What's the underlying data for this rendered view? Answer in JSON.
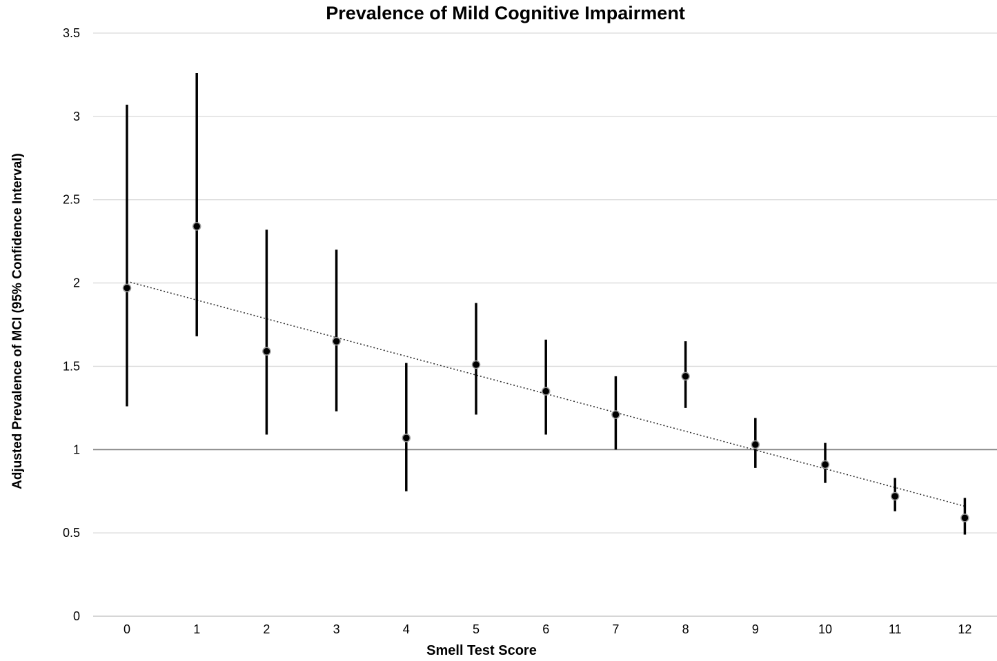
{
  "chart_data": {
    "type": "scatter",
    "title": "Prevalence of Mild Cognitive Impairment",
    "xlabel": "Smell Test Score",
    "ylabel": "Adjusted Prevalence of MCI (95% Confidence Interval)",
    "x_ticks": [
      "0",
      "1",
      "2",
      "3",
      "4",
      "5",
      "6",
      "7",
      "8",
      "9",
      "10",
      "11",
      "12"
    ],
    "y_ticks": [
      "0",
      "0.5",
      "1",
      "1.5",
      "2",
      "2.5",
      "3",
      "3.5"
    ],
    "ylim": [
      0,
      3.5
    ],
    "xlim": [
      0,
      12
    ],
    "grid": true,
    "reference_line_y": 1,
    "points": [
      {
        "x": 0,
        "y": 1.97,
        "lower": 1.26,
        "upper": 3.07
      },
      {
        "x": 1,
        "y": 2.34,
        "lower": 1.68,
        "upper": 3.26
      },
      {
        "x": 2,
        "y": 1.59,
        "lower": 1.09,
        "upper": 2.32
      },
      {
        "x": 3,
        "y": 1.65,
        "lower": 1.23,
        "upper": 2.2
      },
      {
        "x": 4,
        "y": 1.07,
        "lower": 0.75,
        "upper": 1.52
      },
      {
        "x": 5,
        "y": 1.51,
        "lower": 1.21,
        "upper": 1.88
      },
      {
        "x": 6,
        "y": 1.35,
        "lower": 1.09,
        "upper": 1.66
      },
      {
        "x": 7,
        "y": 1.21,
        "lower": 1.0,
        "upper": 1.44
      },
      {
        "x": 8,
        "y": 1.44,
        "lower": 1.25,
        "upper": 1.65
      },
      {
        "x": 9,
        "y": 1.03,
        "lower": 0.89,
        "upper": 1.19
      },
      {
        "x": 10,
        "y": 0.91,
        "lower": 0.8,
        "upper": 1.04
      },
      {
        "x": 11,
        "y": 0.72,
        "lower": 0.63,
        "upper": 0.83
      },
      {
        "x": 12,
        "y": 0.59,
        "lower": 0.49,
        "upper": 0.71
      }
    ],
    "trendline": {
      "style": "dotted",
      "x0": 0,
      "y0": 2.01,
      "x1": 12,
      "y1": 0.66
    }
  }
}
